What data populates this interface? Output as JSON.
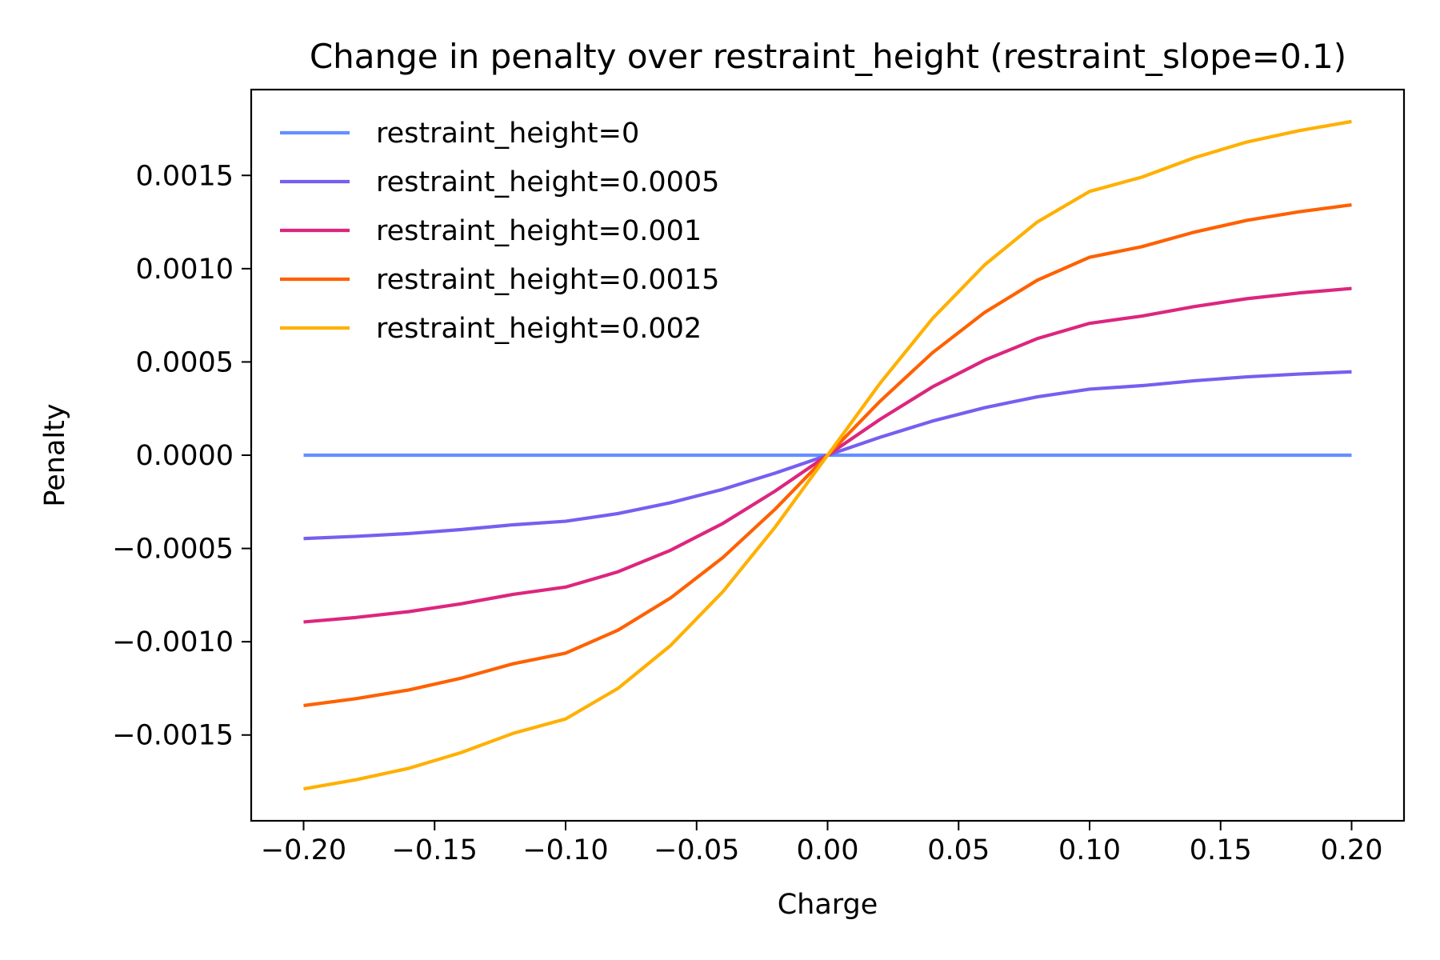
{
  "chart_data": {
    "type": "line",
    "title": "Change in penalty over restraint_height (restraint_slope=0.1)",
    "xlabel": "Charge",
    "ylabel": "Penalty",
    "xlim": [
      -0.22,
      0.22
    ],
    "ylim": [
      -0.00196,
      0.00196
    ],
    "xticks": [
      -0.2,
      -0.15,
      -0.1,
      -0.05,
      0.0,
      0.05,
      0.1,
      0.15,
      0.2
    ],
    "xtick_labels": [
      "−0.20",
      "−0.15",
      "−0.10",
      "−0.05",
      "0.00",
      "0.05",
      "0.10",
      "0.15",
      "0.20"
    ],
    "yticks": [
      -0.0015,
      -0.001,
      -0.0005,
      0.0,
      0.0005,
      0.001,
      0.0015
    ],
    "ytick_labels": [
      "−0.0015",
      "−0.0010",
      "−0.0005",
      "0.0000",
      "0.0005",
      "0.0010",
      "0.0015"
    ],
    "grid": false,
    "legend_position": "top-left",
    "x": [
      -0.2,
      -0.18,
      -0.16,
      -0.14,
      -0.12,
      -0.1,
      -0.08,
      -0.06,
      -0.04,
      -0.02,
      0.0,
      0.02,
      0.04,
      0.06,
      0.08,
      0.1,
      0.12,
      0.14,
      0.16,
      0.18,
      0.2
    ],
    "series": [
      {
        "name": "restraint_height=0",
        "color": "#648fff",
        "values": [
          0,
          0,
          0,
          0,
          0,
          0,
          0,
          0,
          0,
          0,
          0,
          0,
          0,
          0,
          0,
          0,
          0,
          0,
          0,
          0,
          0
        ]
      },
      {
        "name": "restraint_height=0.0005",
        "color": "#785ef0",
        "values": [
          -0.000447,
          -0.000435,
          -0.00042,
          -0.000399,
          -0.000373,
          -0.000354,
          -0.000313,
          -0.000255,
          -0.000183,
          -9.6e-05,
          0.0,
          9.6e-05,
          0.000183,
          0.000255,
          0.000313,
          0.000354,
          0.000373,
          0.000399,
          0.00042,
          0.000435,
          0.000447
        ]
      },
      {
        "name": "restraint_height=0.001",
        "color": "#dc267f",
        "values": [
          -0.000894,
          -0.00087,
          -0.000839,
          -0.000797,
          -0.000746,
          -0.000707,
          -0.000625,
          -0.00051,
          -0.000366,
          -0.000192,
          0.0,
          0.000192,
          0.000366,
          0.00051,
          0.000625,
          0.000707,
          0.000746,
          0.000797,
          0.000839,
          0.00087,
          0.000894
        ]
      },
      {
        "name": "restraint_height=0.0015",
        "color": "#fe6100",
        "values": [
          -0.001342,
          -0.001305,
          -0.001259,
          -0.001196,
          -0.001118,
          -0.001061,
          -0.000938,
          -0.000766,
          -0.000549,
          -0.000289,
          0.0,
          0.000289,
          0.000549,
          0.000766,
          0.000938,
          0.001061,
          0.001118,
          0.001196,
          0.001259,
          0.001305,
          0.001342
        ]
      },
      {
        "name": "restraint_height=0.002",
        "color": "#ffb000",
        "values": [
          -0.001789,
          -0.00174,
          -0.001679,
          -0.001595,
          -0.001491,
          -0.001414,
          -0.00125,
          -0.001021,
          -0.000732,
          -0.000385,
          0.0,
          0.000385,
          0.000732,
          0.001021,
          0.00125,
          0.001414,
          0.001491,
          0.001595,
          0.001679,
          0.00174,
          0.001789
        ]
      }
    ]
  }
}
